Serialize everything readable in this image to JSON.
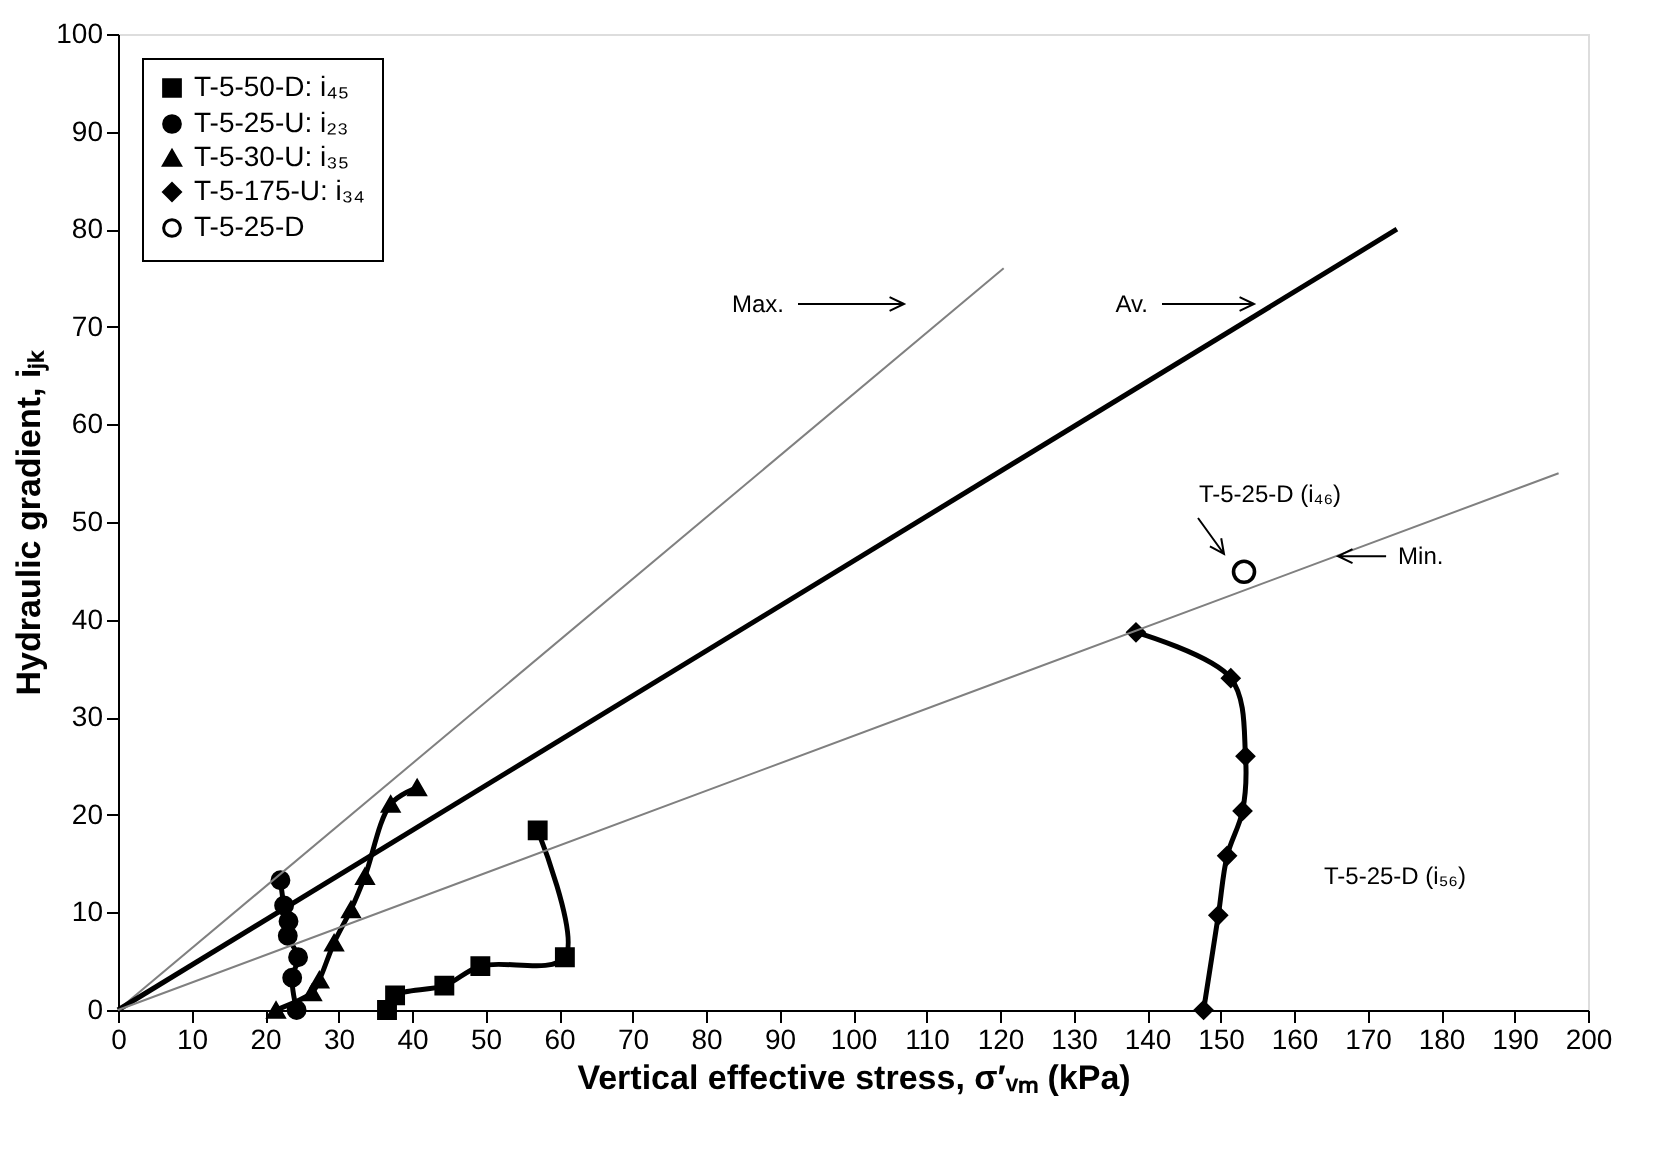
{
  "chart_data": {
    "type": "line",
    "xlabel": "Vertical effective stress, σ′ᵥₘ (kPa)",
    "ylabel": "Hydraulic gradient, iⱼₖ",
    "xlim": [
      0,
      200
    ],
    "xticks": [
      0,
      10,
      20,
      30,
      40,
      50,
      60,
      70,
      80,
      90,
      100,
      110,
      120,
      130,
      140,
      150,
      160,
      170,
      180,
      190,
      200
    ],
    "ylim": [
      0,
      100
    ],
    "yticks": [
      0,
      10,
      20,
      30,
      40,
      50,
      60,
      70,
      80,
      90,
      100
    ],
    "grid": false,
    "legend": "top left",
    "line_style": "solid",
    "series": [
      {
        "name": "T-5-50-D: i₄₅",
        "color": "#000000",
        "marker": "square",
        "x": [
          36.6,
          37.7,
          44.4,
          49.3,
          60.8,
          57.1
        ],
        "values": [
          0,
          1.5,
          2.5,
          4.5,
          5.4,
          18.4
        ]
      },
      {
        "name": "T-5-25-U: i₂₃",
        "color": "#000000",
        "marker": "circle",
        "x": [
          24.3,
          23.7,
          24.5,
          23.1,
          23.2,
          22.6,
          22.1
        ],
        "values": [
          0,
          3.3,
          5.4,
          7.6,
          9.1,
          10.7,
          13.3
        ]
      },
      {
        "name": "T-5-30-U: i₃₅",
        "color": "#000000",
        "marker": "triangle",
        "x": [
          21.5,
          26.4,
          27.4,
          29.4,
          31.7,
          33.6,
          37.1,
          40.7
        ],
        "values": [
          0,
          1.8,
          3.1,
          6.9,
          10.3,
          13.7,
          21.1,
          22.8
        ]
      },
      {
        "name": "T-5-175-U: i₃₄",
        "color": "#000000",
        "marker": "diamond",
        "x": [
          147.7,
          149.7,
          150.9,
          153.0,
          153.4,
          151.4,
          138.5
        ],
        "values": [
          0,
          9.7,
          15.8,
          20.4,
          26.0,
          34.0,
          38.7
        ]
      },
      {
        "name": "T-5-25-D",
        "type": "scatter",
        "color": "#ffffff",
        "marker": "circle",
        "x": [
          153.2
        ],
        "values": [
          44.9
        ]
      },
      {
        "type": "line",
        "color": "#808080",
        "marker": "none",
        "x": [
          0,
          120.5
        ],
        "values": [
          0,
          76
        ]
      },
      {
        "type": "line",
        "color": "#000000",
        "marker": "none",
        "x": [
          0,
          174
        ],
        "values": [
          0,
          80
        ]
      },
      {
        "type": "line",
        "color": "#808080",
        "marker": "none",
        "x": [
          0,
          196
        ],
        "values": [
          0,
          55
        ]
      }
    ],
    "annotations": [
      "Max.",
      "Av.",
      {
        "text": "Min.",
        "x": 166,
        "y": 46.5
      },
      "T-5-25-D (i₄₆)",
      "T-5-25-D (i₅₆)"
    ]
  }
}
